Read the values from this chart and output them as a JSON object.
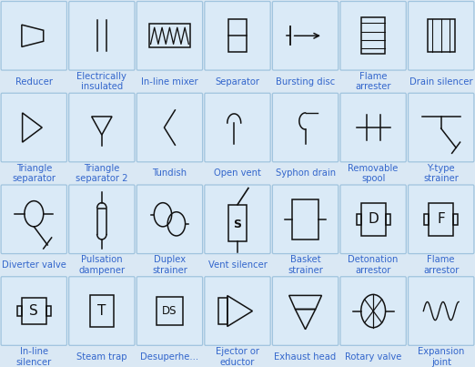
{
  "bg_color": "#dae8f4",
  "box_color": "#daeaf7",
  "box_edge_color": "#a0c4de",
  "text_color": "#3366cc",
  "symbol_color": "#111111",
  "label_fontsize": 7.2,
  "grid_cols": 7,
  "grid_rows": 4,
  "symbols": [
    {
      "label": "Reducer",
      "row": 0,
      "col": 0
    },
    {
      "label": "Electrically\ninsulated",
      "row": 0,
      "col": 1
    },
    {
      "label": "In-line mixer",
      "row": 0,
      "col": 2
    },
    {
      "label": "Separator",
      "row": 0,
      "col": 3
    },
    {
      "label": "Bursting disc",
      "row": 0,
      "col": 4
    },
    {
      "label": "Flame\narrester",
      "row": 0,
      "col": 5
    },
    {
      "label": "Drain silencer",
      "row": 0,
      "col": 6
    },
    {
      "label": "Triangle\nseparator",
      "row": 1,
      "col": 0
    },
    {
      "label": "Triangle\nseparator 2",
      "row": 1,
      "col": 1
    },
    {
      "label": "Tundish",
      "row": 1,
      "col": 2
    },
    {
      "label": "Open vent",
      "row": 1,
      "col": 3
    },
    {
      "label": "Syphon drain",
      "row": 1,
      "col": 4
    },
    {
      "label": "Removable\nspool",
      "row": 1,
      "col": 5
    },
    {
      "label": "Y-type\nstrainer",
      "row": 1,
      "col": 6
    },
    {
      "label": "Diverter valve",
      "row": 2,
      "col": 0
    },
    {
      "label": "Pulsation\ndampener",
      "row": 2,
      "col": 1
    },
    {
      "label": "Duplex\nstrainer",
      "row": 2,
      "col": 2
    },
    {
      "label": "Vent silencer",
      "row": 2,
      "col": 3
    },
    {
      "label": "Basket\nstrainer",
      "row": 2,
      "col": 4
    },
    {
      "label": "Detonation\narrestor",
      "row": 2,
      "col": 5
    },
    {
      "label": "Flame\narrestor",
      "row": 2,
      "col": 6
    },
    {
      "label": "In-line\nsilencer",
      "row": 3,
      "col": 0
    },
    {
      "label": "Steam trap",
      "row": 3,
      "col": 1
    },
    {
      "label": "Desuperhe...",
      "row": 3,
      "col": 2
    },
    {
      "label": "Ejector or\neductor",
      "row": 3,
      "col": 3
    },
    {
      "label": "Exhaust head",
      "row": 3,
      "col": 4
    },
    {
      "label": "Rotary valve",
      "row": 3,
      "col": 5
    },
    {
      "label": "Expansion\njoint",
      "row": 3,
      "col": 6
    }
  ]
}
